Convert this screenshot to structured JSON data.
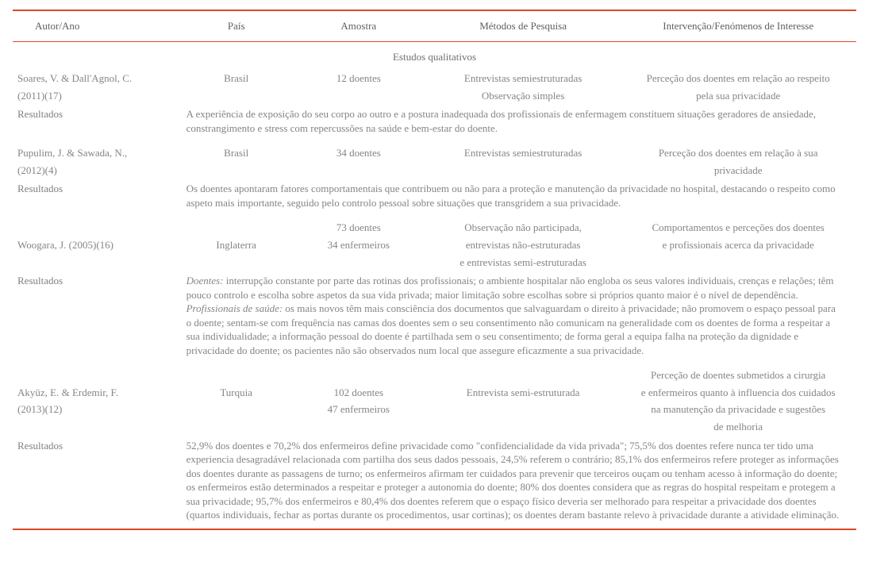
{
  "headers": {
    "autor": "Autor/Ano",
    "pais": "País",
    "amostra": "Amostra",
    "metodos": "Métodos de Pesquisa",
    "intervencao": "Intervenção/Fenómenos de Interesse"
  },
  "section_title": "Estudos qualitativos",
  "results_label": "Resultados",
  "studies": [
    {
      "author_l1": "Soares, V. & Dall'Agnol, C.",
      "author_l2": "(2011)(17)",
      "pais": "Brasil",
      "amostra_l1": "12 doentes",
      "amostra_l2": "",
      "metodos_l1": "Entrevistas semiestruturadas",
      "metodos_l2": "Observação simples",
      "metodos_l3": "",
      "interv_l1": "Perceção dos doentes em relação ao respeito",
      "interv_l2": "pela sua privacidade",
      "interv_l3": "",
      "interv_l4": "",
      "results_p1": "A experiência de exposição do seu corpo ao outro e a postura inadequada dos profissionais de enfermagem constituem situações geradores de ansiedade, constrangimento e stress com repercussões na saúde e bem-estar do doente.",
      "results_p2_label": "",
      "results_p2": "",
      "results_p3": ""
    },
    {
      "author_l1": "Pupulim, J. & Sawada, N.,",
      "author_l2": "(2012)(4)",
      "pais": "Brasil",
      "amostra_l1": "34 doentes",
      "amostra_l2": "",
      "metodos_l1": "Entrevistas semiestruturadas",
      "metodos_l2": "",
      "metodos_l3": "",
      "interv_l1": "Perceção dos doentes em relação à sua",
      "interv_l2": "privacidade",
      "interv_l3": "",
      "interv_l4": "",
      "results_p1": "Os doentes apontaram fatores comportamentais que contribuem ou não para a proteção e manutenção da privacidade no hospital, destacando o respeito como aspeto mais importante, seguido pelo controlo pessoal sobre situações que transgridem a sua privacidade.",
      "results_p2_label": "",
      "results_p2": "",
      "results_p3": ""
    },
    {
      "author_l1": "Woogara, J. (2005)(16)",
      "author_l2": "",
      "pais": "Inglaterra",
      "amostra_l1": "73 doentes",
      "amostra_l2": "34 enfermeiros",
      "metodos_l1": "Observação não participada,",
      "metodos_l2": "entrevistas não-estruturadas",
      "metodos_l3": "e entrevistas semi-estruturadas",
      "interv_l1": "Comportamentos e perceções dos doentes",
      "interv_l2": "e profissionais acerca da privacidade",
      "interv_l3": "",
      "interv_l4": "",
      "results_p1_label": "Doentes:",
      "results_p1": " interrupção constante por parte das rotinas dos profissionais; o ambiente hospitalar não engloba os seus valores individuais, crenças e relações; têm pouco controlo e escolha sobre aspetos da sua vida privada; maior limitação sobre escolhas sobre si próprios quanto maior é o nível de dependência.",
      "results_p2_label": "Profissionais de saúde:",
      "results_p2": " os mais novos têm mais consciência dos documentos que salvaguardam o direito à privacidade; não promovem o espaço pessoal para o doente; sentam-se com frequência nas camas dos doentes sem o seu consentimento não comunicam na generalidade com os doentes de forma a respeitar a sua individualidade; a informação pessoal do doente é partilhada sem o seu consentimento; de forma geral a equipa falha na proteção da dignidade e privacidade do doente; os pacientes não são observados num local que assegure eficazmente a sua privacidade.",
      "results_p3": ""
    },
    {
      "author_l1": "Akyüz, E. & Erdemir, F.",
      "author_l2": "(2013)(12)",
      "pais": "Turquia",
      "amostra_l1": "102 doentes",
      "amostra_l2": "47 enfermeiros",
      "metodos_l1": "Entrevista semi-estruturada",
      "metodos_l2": "",
      "metodos_l3": "",
      "interv_l1": "Perceção de doentes submetidos a cirurgia",
      "interv_l2": "e enfermeiros quanto à influencia dos cuidados",
      "interv_l3": "na manutenção da privacidade e sugestões",
      "interv_l4": "de melhoria",
      "results_p1": "52,9% dos doentes e 70,2% dos enfermeiros define privacidade como \"confidencialidade da vida privada\"; 75,5% dos doentes refere nunca ter tido uma experiencia desagradável relacionada com partilha dos seus dados pessoais, 24,5% referem o contrário; 85,1% dos enfermeiros refere proteger as informações dos doentes durante as passagens de turno; os enfermeiros afirmam ter cuidados para prevenir que terceiros ouçam ou tenham acesso à informação do doente; os enfermeiros estão determinados a respeitar e proteger a autonomia do doente; 80% dos doentes considera que as regras do hospital respeitam e protegem a sua privacidade; 95,7% dos enfermeiros e 80,4% dos doentes referem que o espaço físico deveria ser melhorado para respeitar a privacidade dos doentes (quartos individuais, fechar as portas durante os procedimentos, usar cortinas); os doentes deram bastante relevo à privacidade durante a atividade eliminação.",
      "results_p2_label": "",
      "results_p2": "",
      "results_p3": ""
    }
  ]
}
